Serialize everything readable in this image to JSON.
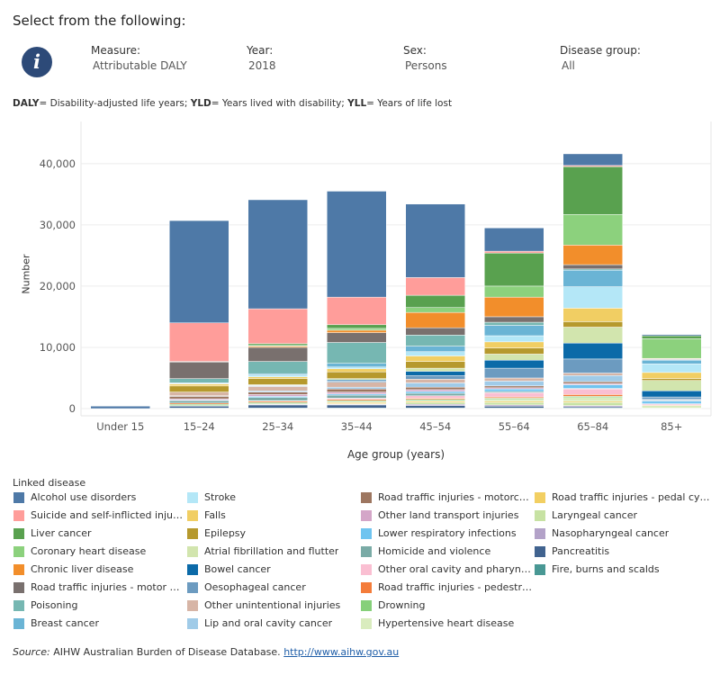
{
  "header": {
    "title": "Select from the following:",
    "filters": [
      {
        "label": "Measure:",
        "value": "Attributable DALY"
      },
      {
        "label": "Year:",
        "value": "2018"
      },
      {
        "label": "Sex:",
        "value": "Persons"
      },
      {
        "label": "Disease group:",
        "value": "All"
      }
    ]
  },
  "definitions": [
    {
      "term": "DALY",
      "text": "= Disability-adjusted life years; "
    },
    {
      "term": "YLD",
      "text": "= Years lived with disability; "
    },
    {
      "term": "YLL",
      "text": "= Years of life lost"
    }
  ],
  "legend_title": "Linked disease",
  "source": {
    "label": "Source:",
    "text": " AIHW Australian Burden of Disease Database. ",
    "link": "http://www.aihw.gov.au"
  },
  "chart_data": {
    "type": "bar",
    "stacked": true,
    "title": "",
    "xlabel": "Age group (years)",
    "ylabel": "Number",
    "ylim": [
      0,
      43500
    ],
    "yticks": [
      0,
      10000,
      20000,
      30000,
      40000
    ],
    "ytick_labels": [
      "0",
      "10,000",
      "20,000",
      "30,000",
      "40,000"
    ],
    "grid": true,
    "categories": [
      "Under 15",
      "15–24",
      "25–34",
      "35–44",
      "45–54",
      "55–64",
      "65–84",
      "85+"
    ],
    "series": [
      {
        "name": "Alcohol use disorders",
        "color": "#4e79a7",
        "values": [
          400,
          16700,
          17800,
          17300,
          12000,
          3800,
          1900,
          200
        ]
      },
      {
        "name": "Suicide and self-inflicted injuries",
        "color": "#ff9d9a",
        "values": [
          0,
          6300,
          5700,
          4500,
          2900,
          300,
          200,
          0
        ]
      },
      {
        "name": "Liver cancer",
        "color": "#59a14f",
        "values": [
          0,
          100,
          300,
          600,
          2000,
          5400,
          7800,
          500
        ]
      },
      {
        "name": "Coronary heart disease",
        "color": "#8cd17d",
        "values": [
          0,
          0,
          100,
          300,
          800,
          1800,
          5000,
          3200
        ]
      },
      {
        "name": "Chronic liver disease",
        "color": "#f28e2b",
        "values": [
          0,
          0,
          200,
          400,
          2500,
          3200,
          3200,
          100
        ]
      },
      {
        "name": "Road traffic injuries - motor vehicle occupants",
        "color": "#79706e",
        "values": [
          0,
          2700,
          2300,
          1600,
          1200,
          900,
          700,
          100
        ]
      },
      {
        "name": "Poisoning",
        "color": "#76b7b2",
        "values": [
          0,
          700,
          2000,
          3400,
          1800,
          500,
          200,
          100
        ]
      },
      {
        "name": "Breast cancer",
        "color": "#6ab4d5",
        "values": [
          0,
          100,
          200,
          600,
          900,
          1700,
          2700,
          600
        ]
      },
      {
        "name": "Stroke",
        "color": "#b4e7f7",
        "values": [
          0,
          100,
          300,
          300,
          700,
          1000,
          3500,
          1400
        ]
      },
      {
        "name": "Falls",
        "color": "#f1ce63",
        "values": [
          0,
          300,
          300,
          500,
          900,
          1000,
          2200,
          1000
        ]
      },
      {
        "name": "Epilepsy",
        "color": "#b6992d",
        "values": [
          0,
          1000,
          1000,
          1100,
          1100,
          1000,
          900,
          300
        ]
      },
      {
        "name": "Atrial fibrillation and flutter",
        "color": "#d2e5ae",
        "values": [
          0,
          0,
          100,
          200,
          500,
          1000,
          2600,
          1700
        ]
      },
      {
        "name": "Bowel cancer",
        "color": "#0b6aa8",
        "values": [
          0,
          0,
          100,
          200,
          700,
          1300,
          2600,
          1000
        ]
      },
      {
        "name": "Oesophageal cancer",
        "color": "#6c9bc0",
        "values": [
          0,
          0,
          100,
          200,
          600,
          1600,
          2300,
          400
        ]
      },
      {
        "name": "Other unintentional injuries",
        "color": "#d7b5a6",
        "values": [
          0,
          600,
          700,
          800,
          600,
          500,
          400,
          100
        ]
      },
      {
        "name": "Lip and oral cavity cancer",
        "color": "#a0cbe8",
        "values": [
          0,
          100,
          200,
          300,
          700,
          800,
          1000,
          200
        ]
      },
      {
        "name": "Road traffic injuries - motorcyclists",
        "color": "#9d7660",
        "values": [
          0,
          400,
          400,
          500,
          400,
          300,
          300,
          0
        ]
      },
      {
        "name": "Other land transport injuries",
        "color": "#d4a6c8",
        "values": [
          0,
          200,
          300,
          300,
          300,
          200,
          200,
          0
        ]
      },
      {
        "name": "Lower respiratory infections",
        "color": "#6fc4f0",
        "values": [
          0,
          100,
          200,
          200,
          300,
          400,
          600,
          400
        ]
      },
      {
        "name": "Homicide and violence",
        "color": "#7aaba6",
        "values": [
          0,
          400,
          500,
          500,
          400,
          200,
          100,
          0
        ]
      },
      {
        "name": "Other oral cavity and pharynx cancer",
        "color": "#fabfd2",
        "values": [
          0,
          0,
          100,
          200,
          400,
          700,
          900,
          200
        ]
      },
      {
        "name": "Road traffic injuries - pedestrians",
        "color": "#f47c3a",
        "values": [
          0,
          200,
          200,
          200,
          200,
          200,
          300,
          100
        ]
      },
      {
        "name": "Drowning",
        "color": "#86d07a",
        "values": [
          0,
          200,
          200,
          200,
          200,
          200,
          200,
          0
        ]
      },
      {
        "name": "Hypertensive heart disease",
        "color": "#d9ecbe",
        "values": [
          0,
          0,
          0,
          100,
          100,
          300,
          600,
          400
        ]
      },
      {
        "name": "Road traffic injuries - pedal cyclists",
        "color": "#f2cf62",
        "values": [
          0,
          100,
          100,
          200,
          200,
          200,
          200,
          0
        ]
      },
      {
        "name": "Laryngeal cancer",
        "color": "#c7e2a3",
        "values": [
          0,
          0,
          0,
          100,
          300,
          400,
          500,
          100
        ]
      },
      {
        "name": "Nasopharyngeal cancer",
        "color": "#b3a2c8",
        "values": [
          0,
          0,
          100,
          100,
          200,
          200,
          200,
          0
        ]
      },
      {
        "name": "Pancreatitis",
        "color": "#41638f",
        "values": [
          0,
          300,
          500,
          500,
          400,
          300,
          200,
          0
        ]
      },
      {
        "name": "Fire, burns and scalds",
        "color": "#499894",
        "values": [
          0,
          100,
          100,
          100,
          100,
          100,
          100,
          0
        ]
      }
    ]
  }
}
